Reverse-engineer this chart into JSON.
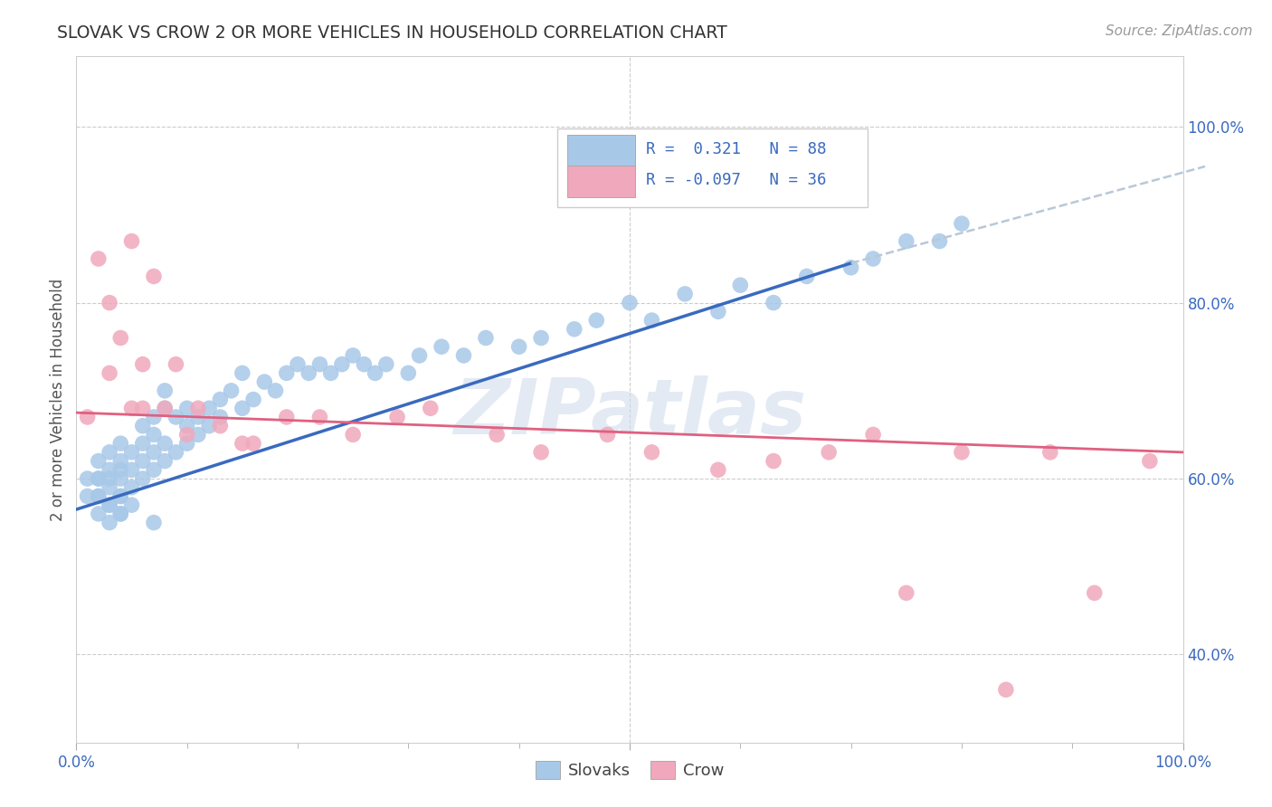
{
  "title": "SLOVAK VS CROW 2 OR MORE VEHICLES IN HOUSEHOLD CORRELATION CHART",
  "source_text": "Source: ZipAtlas.com",
  "ylabel": "2 or more Vehicles in Household",
  "xlim": [
    0.0,
    1.0
  ],
  "ylim": [
    0.3,
    1.08
  ],
  "legend_r_slovak": "0.321",
  "legend_n_slovak": "88",
  "legend_r_crow": "-0.097",
  "legend_n_crow": "36",
  "slovak_color": "#a8c8e8",
  "crow_color": "#f0a8bc",
  "slovak_line_color": "#3a6abf",
  "crow_line_color": "#e06080",
  "dash_line_color": "#b8c8d8",
  "watermark": "ZIPatlas",
  "background_color": "#ffffff",
  "slovak_x": [
    0.01,
    0.01,
    0.02,
    0.02,
    0.02,
    0.02,
    0.02,
    0.02,
    0.03,
    0.03,
    0.03,
    0.03,
    0.03,
    0.03,
    0.03,
    0.04,
    0.04,
    0.04,
    0.04,
    0.04,
    0.04,
    0.04,
    0.04,
    0.05,
    0.05,
    0.05,
    0.05,
    0.06,
    0.06,
    0.06,
    0.06,
    0.07,
    0.07,
    0.07,
    0.07,
    0.07,
    0.08,
    0.08,
    0.08,
    0.08,
    0.09,
    0.09,
    0.1,
    0.1,
    0.1,
    0.11,
    0.11,
    0.12,
    0.12,
    0.13,
    0.13,
    0.14,
    0.15,
    0.15,
    0.16,
    0.17,
    0.18,
    0.19,
    0.2,
    0.21,
    0.22,
    0.23,
    0.24,
    0.25,
    0.26,
    0.27,
    0.28,
    0.3,
    0.31,
    0.33,
    0.35,
    0.37,
    0.4,
    0.42,
    0.45,
    0.47,
    0.5,
    0.52,
    0.55,
    0.58,
    0.6,
    0.63,
    0.66,
    0.7,
    0.72,
    0.75,
    0.78,
    0.8
  ],
  "slovak_y": [
    0.58,
    0.6,
    0.56,
    0.58,
    0.6,
    0.62,
    0.58,
    0.6,
    0.55,
    0.57,
    0.59,
    0.61,
    0.63,
    0.57,
    0.6,
    0.56,
    0.58,
    0.6,
    0.62,
    0.64,
    0.56,
    0.58,
    0.61,
    0.59,
    0.61,
    0.63,
    0.57,
    0.6,
    0.62,
    0.64,
    0.66,
    0.61,
    0.63,
    0.65,
    0.67,
    0.55,
    0.62,
    0.64,
    0.68,
    0.7,
    0.63,
    0.67,
    0.64,
    0.66,
    0.68,
    0.65,
    0.67,
    0.66,
    0.68,
    0.67,
    0.69,
    0.7,
    0.68,
    0.72,
    0.69,
    0.71,
    0.7,
    0.72,
    0.73,
    0.72,
    0.73,
    0.72,
    0.73,
    0.74,
    0.73,
    0.72,
    0.73,
    0.72,
    0.74,
    0.75,
    0.74,
    0.76,
    0.75,
    0.76,
    0.77,
    0.78,
    0.8,
    0.78,
    0.81,
    0.79,
    0.82,
    0.8,
    0.83,
    0.84,
    0.85,
    0.87,
    0.87,
    0.89
  ],
  "crow_x": [
    0.01,
    0.02,
    0.03,
    0.03,
    0.04,
    0.05,
    0.05,
    0.06,
    0.06,
    0.07,
    0.08,
    0.09,
    0.1,
    0.11,
    0.13,
    0.15,
    0.16,
    0.19,
    0.22,
    0.25,
    0.29,
    0.32,
    0.38,
    0.42,
    0.48,
    0.52,
    0.58,
    0.63,
    0.68,
    0.72,
    0.75,
    0.8,
    0.84,
    0.88,
    0.92,
    0.97
  ],
  "crow_y": [
    0.67,
    0.85,
    0.72,
    0.8,
    0.76,
    0.68,
    0.87,
    0.73,
    0.68,
    0.83,
    0.68,
    0.73,
    0.65,
    0.68,
    0.66,
    0.64,
    0.64,
    0.67,
    0.67,
    0.65,
    0.67,
    0.68,
    0.65,
    0.63,
    0.65,
    0.63,
    0.61,
    0.62,
    0.63,
    0.65,
    0.47,
    0.63,
    0.36,
    0.63,
    0.47,
    0.62
  ],
  "slovak_line_x": [
    0.0,
    0.7
  ],
  "slovak_line_y": [
    0.565,
    0.845
  ],
  "crow_line_x": [
    0.0,
    1.0
  ],
  "crow_line_y": [
    0.675,
    0.63
  ],
  "dash_line_x": [
    0.7,
    1.02
  ],
  "dash_line_y": [
    0.845,
    0.955
  ]
}
